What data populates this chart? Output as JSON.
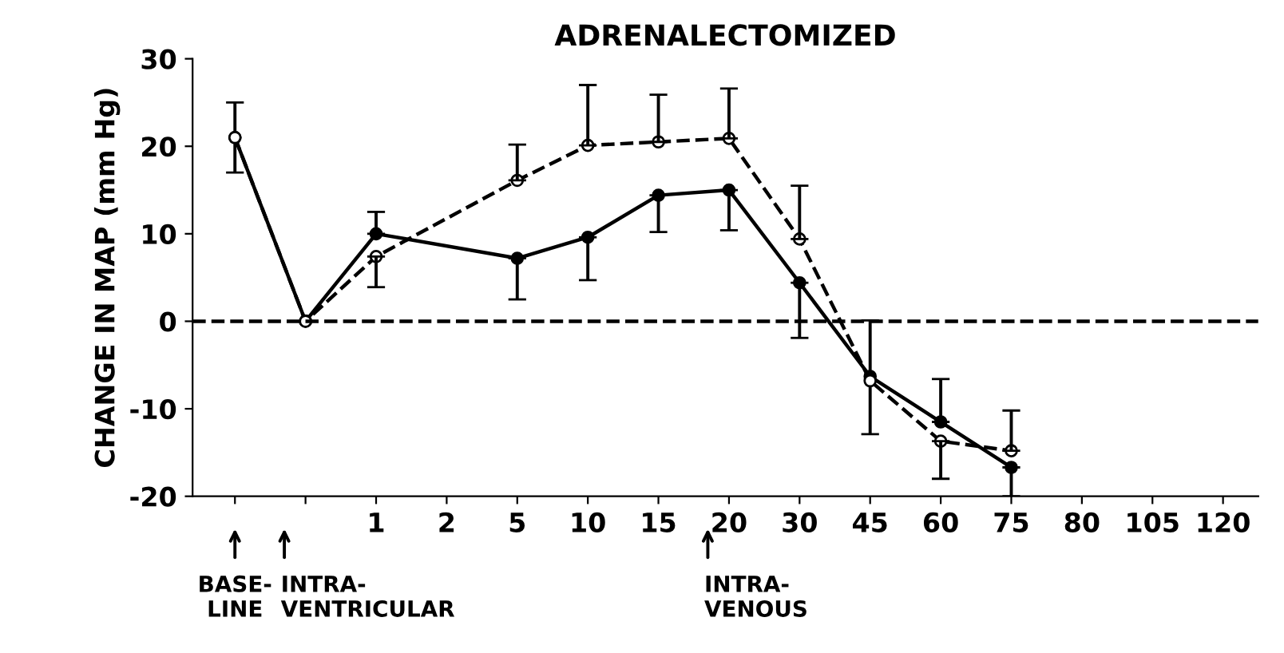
{
  "chart_data": {
    "type": "line",
    "title": "ADRENALECTOMIZED",
    "ylabel": "CHANGE IN MAP (mm Hg)",
    "categories": [
      null,
      null,
      "1",
      "2",
      "5",
      "10",
      "15",
      "20",
      "30",
      "45",
      "60",
      "75",
      "80",
      "105",
      "120"
    ],
    "series": [
      {
        "color": "#000000",
        "line_style": "solid",
        "marker": "circle",
        "values": [
          21,
          0,
          10,
          null,
          7.2,
          9.6,
          14.4,
          15,
          4.4,
          -6.3,
          -11.5,
          -16.7,
          null,
          null,
          null
        ],
        "errors": [
          [
            17,
            25
          ],
          null,
          [
            10,
            12.5
          ],
          null,
          [
            2.5,
            7.2
          ],
          [
            4.7,
            9.6
          ],
          [
            10.2,
            14.4
          ],
          [
            10.4,
            15
          ],
          [
            -1.9,
            4.4
          ],
          [
            -12.9,
            0.1
          ],
          [
            -11.5,
            -6.6
          ],
          [
            -20,
            -16.7
          ],
          null,
          null,
          null
        ]
      },
      {
        "color": "#000000",
        "line_style": "dashed",
        "marker": "circle",
        "values": [
          21,
          0,
          7.4,
          null,
          16.1,
          20.1,
          20.5,
          20.9,
          9.4,
          -6.8,
          -13.7,
          -14.8,
          null,
          null,
          null
        ],
        "errors": [
          null,
          null,
          [
            3.9,
            7.4
          ],
          null,
          [
            16.1,
            20.2
          ],
          [
            20.1,
            27
          ],
          [
            20.5,
            25.9
          ],
          [
            20.9,
            26.6
          ],
          [
            9.4,
            15.5
          ],
          null,
          [
            -18,
            -13.7
          ],
          [
            -14.8,
            -10.2
          ],
          null,
          null,
          null
        ]
      }
    ],
    "ylim": [
      -20,
      30
    ],
    "yticks": [
      -20,
      -10,
      0,
      10,
      20,
      30
    ],
    "grid": false,
    "legend": false,
    "ref_lines": [
      {
        "axis": "y",
        "value": 0,
        "line_style": "dashed",
        "color": "#000000"
      }
    ],
    "annotations": [
      "BASE-\nLINE",
      "INTRA-\nVENTRICULAR",
      "INTRA-\nVENOUS"
    ]
  }
}
